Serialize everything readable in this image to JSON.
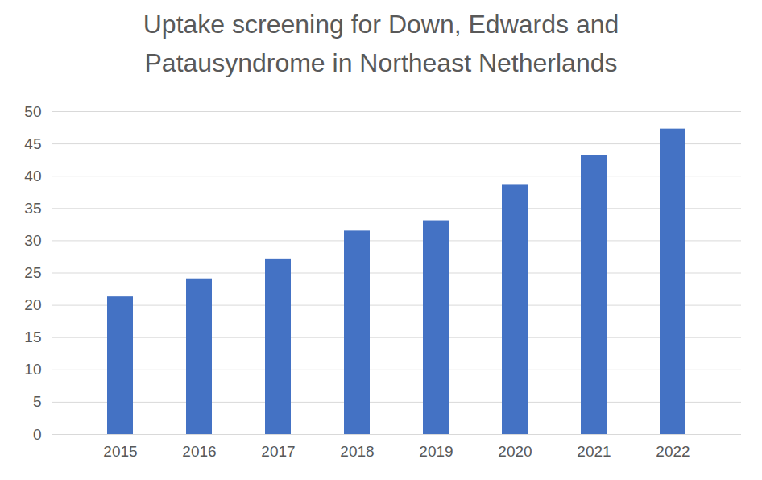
{
  "chart_data": {
    "type": "bar",
    "title": "Uptake screening for Down, Edwards and Patausyndrome in Northeast Netherlands",
    "categories": [
      "2015",
      "2016",
      "2017",
      "2018",
      "2019",
      "2020",
      "2021",
      "2022"
    ],
    "values": [
      21.3,
      24.1,
      27.2,
      31.5,
      33.1,
      38.6,
      43.2,
      47.3
    ],
    "color": "#4472c4",
    "ylim": [
      0,
      50
    ],
    "yticks": [
      0,
      5,
      10,
      15,
      20,
      25,
      30,
      35,
      40,
      45,
      50
    ],
    "grid": true
  }
}
